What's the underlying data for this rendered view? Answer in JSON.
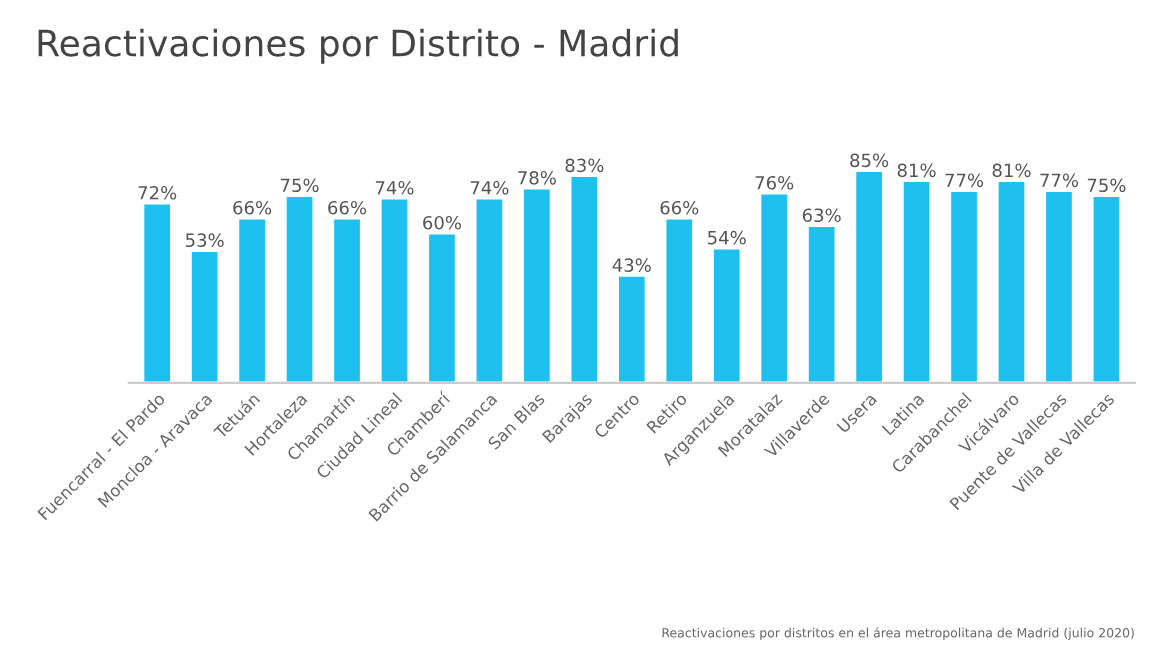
{
  "chart_data": {
    "type": "bar",
    "title": "Reactivaciones por Distrito - Madrid",
    "categories": [
      "Fuencarral - El Pardo",
      "Moncloa - Aravaca",
      "Tetuán",
      "Hortaleza",
      "Chamartín",
      "Ciudad Lineal",
      "Chamberí",
      "Barrio de Salamanca",
      "San Blas",
      "Barajas",
      "Centro",
      "Retiro",
      "Arganzuela",
      "Moratalaz",
      "Villaverde",
      "Usera",
      "Latina",
      "Carabanchel",
      "Vicálvaro",
      "Puente de Vallecas",
      "Villa de Vallecas"
    ],
    "values": [
      72,
      53,
      66,
      75,
      66,
      74,
      60,
      74,
      78,
      83,
      43,
      66,
      54,
      76,
      63,
      85,
      81,
      77,
      81,
      77,
      75
    ],
    "value_labels": [
      "72%",
      "53%",
      "66%",
      "75%",
      "66%",
      "74%",
      "60%",
      "74%",
      "78%",
      "83%",
      "43%",
      "66%",
      "54%",
      "76%",
      "63%",
      "85%",
      "81%",
      "77%",
      "81%",
      "77%",
      "75%"
    ],
    "color": "#1ec0ef",
    "tick_labels": "x",
    "legend": false,
    "annotations": [
      "Reactivaciones por distritos en el área metropolitana de Madrid (julio 2020)"
    ]
  }
}
